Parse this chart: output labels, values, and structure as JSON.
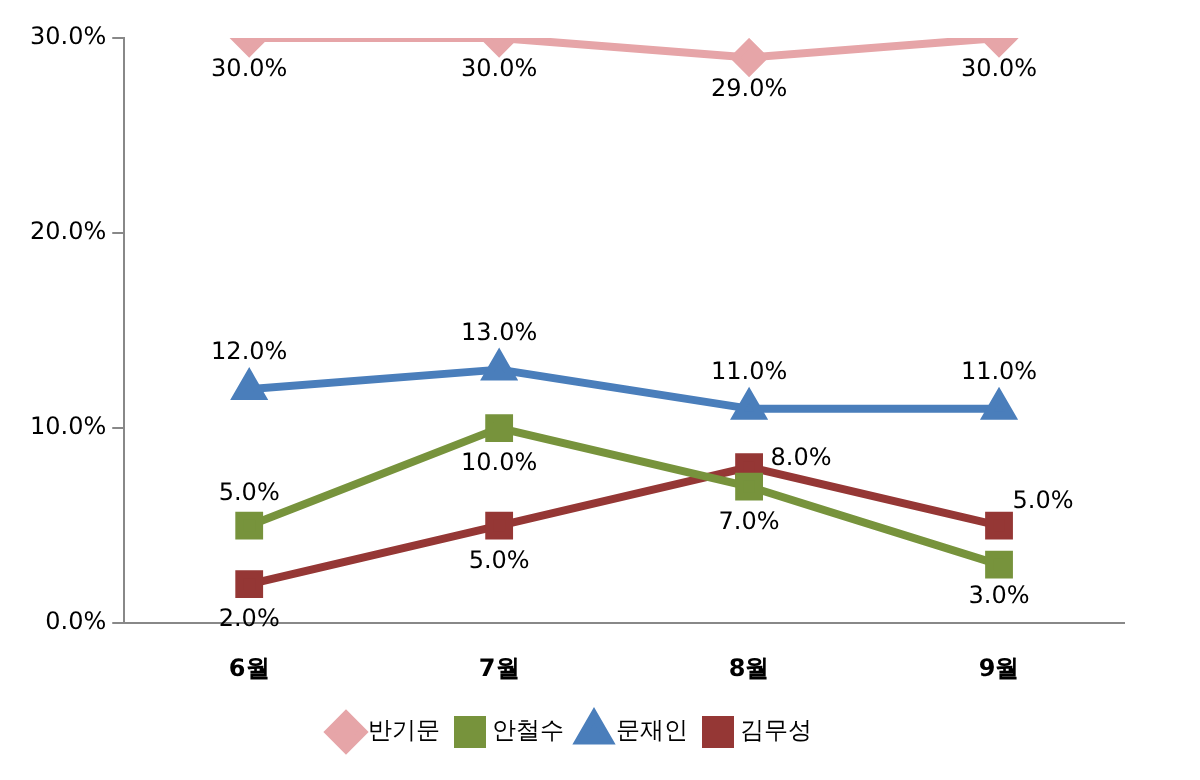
{
  "chart_data": {
    "type": "line",
    "categories": [
      "6월",
      "7월",
      "8월",
      "9월"
    ],
    "series": [
      {
        "name": "반기문",
        "color": "#e6a5a8",
        "marker": "diamond",
        "values": [
          30,
          30,
          29,
          30
        ],
        "value_labels": [
          "30.0%",
          "30.0%",
          "29.0%",
          "30.0%"
        ]
      },
      {
        "name": "안철수",
        "color": "#77933c",
        "marker": "square",
        "values": [
          5,
          10,
          7,
          3
        ],
        "value_labels": [
          "5.0%",
          "10.0%",
          "7.0%",
          "3.0%"
        ]
      },
      {
        "name": "문재인",
        "color": "#4a7ebb",
        "marker": "triangle",
        "values": [
          12,
          13,
          11,
          11
        ],
        "value_labels": [
          "12.0%",
          "13.0%",
          "11.0%",
          "11.0%"
        ]
      },
      {
        "name": "김무성",
        "color": "#953735",
        "marker": "square",
        "values": [
          2,
          5,
          8,
          5
        ],
        "value_labels": [
          "2.0%",
          "5.0%",
          "8.0%",
          "5.0%"
        ]
      }
    ],
    "ylim": [
      0,
      30
    ],
    "yticks": [
      {
        "value": 0,
        "label": "0.0%"
      },
      {
        "value": 10,
        "label": "10.0%"
      },
      {
        "value": 20,
        "label": "20.0%"
      },
      {
        "value": 30,
        "label": "30.0%"
      }
    ],
    "grid": false,
    "legend": "bottom"
  }
}
